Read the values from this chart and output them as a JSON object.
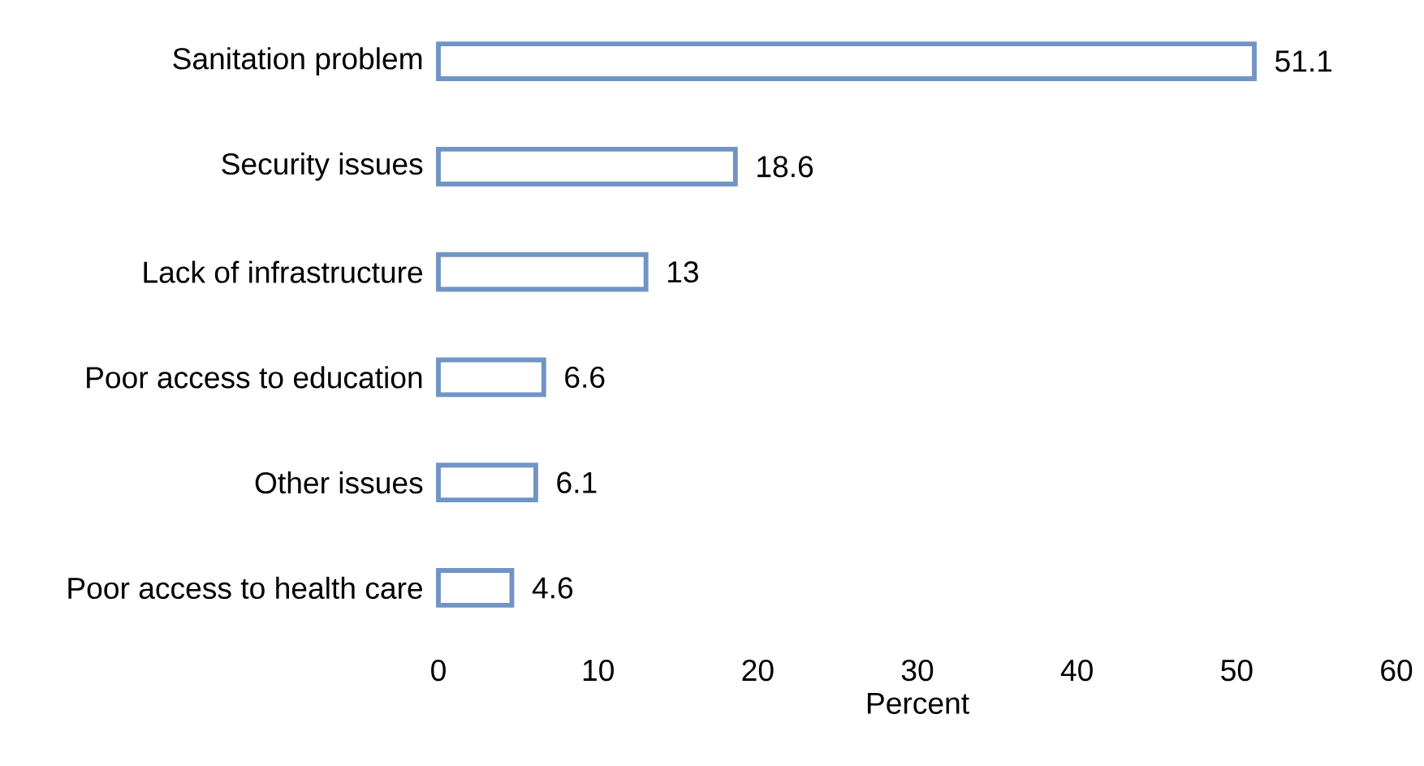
{
  "chart_data": {
    "type": "bar",
    "orientation": "horizontal",
    "xlabel": "Percent",
    "categories": [
      "Sanitation problem",
      "Security issues",
      "Lack of infrastructure",
      "Poor access to education",
      "Other issues",
      "Poor access to health care"
    ],
    "values": [
      51.1,
      18.6,
      13,
      6.6,
      6.1,
      4.6
    ],
    "color": "#7094c4",
    "xlim": [
      0,
      60
    ],
    "xticks": [
      0,
      10,
      20,
      30,
      40,
      50,
      60
    ],
    "data_labels": true
  }
}
